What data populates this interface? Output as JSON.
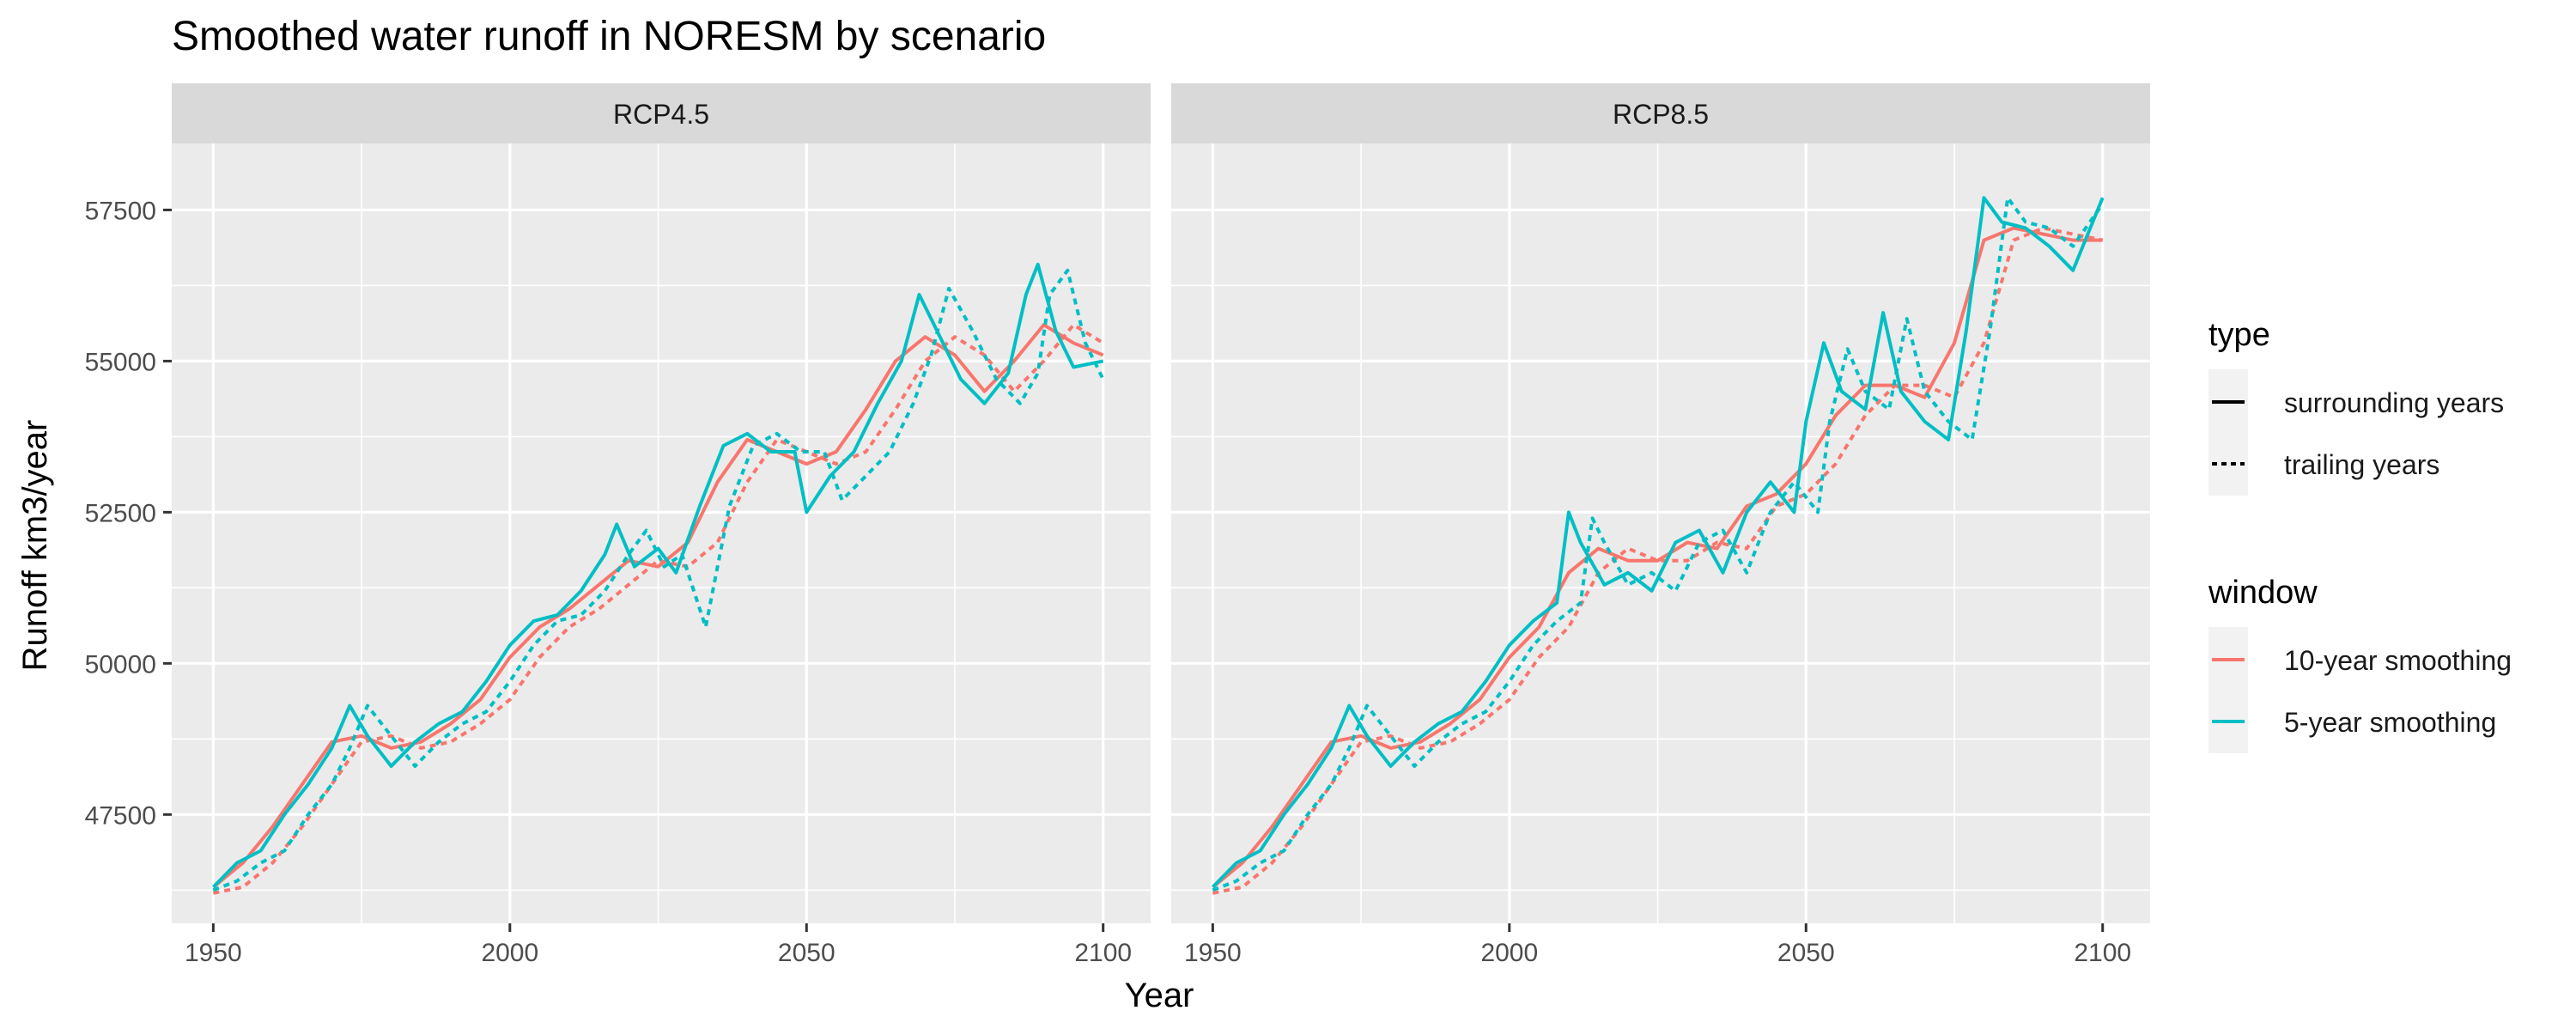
{
  "title": "Smoothed water runoff in NORESM by scenario",
  "xlabel": "Year",
  "ylabel": "Runoff km3/year",
  "legend": {
    "type_title": "type",
    "type_items": [
      "surrounding years",
      "trailing years"
    ],
    "window_title": "window",
    "window_items": [
      "10-year smoothing",
      "5-year smoothing"
    ]
  },
  "colors": {
    "10-year smoothing": "#F8766D",
    "5-year smoothing": "#00BFC4",
    "panel_bg": "#EBEBEB",
    "strip_bg": "#D9D9D9"
  },
  "chart_data": [
    {
      "type": "line",
      "panel": "RCP4.5",
      "xlim": [
        1943,
        2108
      ],
      "ylim": [
        45700,
        58600
      ],
      "x_ticks": [
        1950,
        2000,
        2050,
        2100
      ],
      "y_ticks": [
        47500,
        50000,
        52500,
        55000,
        57500
      ],
      "series": [
        {
          "window": "10-year smoothing",
          "type": "surrounding years",
          "x": [
            1950,
            1955,
            1960,
            1965,
            1970,
            1975,
            1980,
            1985,
            1990,
            1995,
            2000,
            2005,
            2010,
            2015,
            2020,
            2025,
            2030,
            2035,
            2040,
            2045,
            2050,
            2055,
            2060,
            2065,
            2070,
            2075,
            2080,
            2085,
            2090,
            2095,
            2100
          ],
          "y": [
            46300,
            46700,
            47300,
            48000,
            48700,
            48800,
            48600,
            48700,
            49000,
            49400,
            50100,
            50600,
            50900,
            51300,
            51700,
            51600,
            52000,
            53000,
            53700,
            53500,
            53300,
            53500,
            54200,
            55000,
            55400,
            55100,
            54500,
            55000,
            55600,
            55300,
            55100
          ]
        },
        {
          "window": "10-year smoothing",
          "type": "trailing years",
          "x": [
            1950,
            1955,
            1960,
            1965,
            1970,
            1975,
            1980,
            1985,
            1990,
            1995,
            2000,
            2005,
            2010,
            2015,
            2020,
            2025,
            2030,
            2035,
            2040,
            2045,
            2050,
            2055,
            2060,
            2065,
            2070,
            2075,
            2080,
            2085,
            2090,
            2095,
            2100
          ],
          "y": [
            46200,
            46300,
            46700,
            47300,
            48000,
            48700,
            48800,
            48600,
            48700,
            49000,
            49400,
            50100,
            50600,
            50900,
            51300,
            51700,
            51600,
            52000,
            53000,
            53700,
            53500,
            53300,
            53500,
            54200,
            55000,
            55400,
            55100,
            54500,
            55000,
            55600,
            55300
          ]
        },
        {
          "window": "5-year smoothing",
          "type": "surrounding years",
          "x": [
            1950,
            1954,
            1958,
            1962,
            1966,
            1970,
            1973,
            1976,
            1980,
            1984,
            1988,
            1992,
            1996,
            2000,
            2004,
            2008,
            2012,
            2016,
            2018,
            2021,
            2025,
            2028,
            2032,
            2036,
            2040,
            2044,
            2048,
            2050,
            2054,
            2058,
            2062,
            2066,
            2069,
            2072,
            2076,
            2080,
            2084,
            2087,
            2089,
            2092,
            2095,
            2100
          ],
          "y": [
            46300,
            46700,
            46900,
            47500,
            48000,
            48600,
            49300,
            48800,
            48300,
            48700,
            49000,
            49200,
            49700,
            50300,
            50700,
            50800,
            51200,
            51800,
            52300,
            51600,
            51900,
            51500,
            52600,
            53600,
            53800,
            53500,
            53500,
            52500,
            53100,
            53500,
            54300,
            55000,
            56100,
            55500,
            54700,
            54300,
            54800,
            56100,
            56600,
            55500,
            54900,
            55000
          ]
        },
        {
          "window": "5-year smoothing",
          "type": "trailing years",
          "x": [
            1950,
            1954,
            1958,
            1962,
            1966,
            1970,
            1973,
            1976,
            1980,
            1984,
            1988,
            1992,
            1996,
            2000,
            2004,
            2008,
            2012,
            2016,
            2020,
            2023,
            2026,
            2029,
            2033,
            2037,
            2041,
            2045,
            2049,
            2053,
            2056,
            2060,
            2064,
            2068,
            2071,
            2074,
            2078,
            2082,
            2086,
            2089,
            2091,
            2094,
            2097,
            2100
          ],
          "y": [
            46250,
            46400,
            46700,
            46900,
            47500,
            48000,
            48600,
            49300,
            48800,
            48300,
            48700,
            49000,
            49200,
            49700,
            50300,
            50700,
            50800,
            51200,
            51800,
            52200,
            51600,
            51800,
            50600,
            52600,
            53600,
            53800,
            53500,
            53500,
            52700,
            53100,
            53500,
            54300,
            55100,
            56200,
            55500,
            54700,
            54300,
            54800,
            56100,
            56500,
            55300,
            54700
          ]
        }
      ]
    },
    {
      "type": "line",
      "panel": "RCP8.5",
      "xlim": [
        1943,
        2108
      ],
      "ylim": [
        45700,
        58600
      ],
      "x_ticks": [
        1950,
        2000,
        2050,
        2100
      ],
      "y_ticks": [
        47500,
        50000,
        52500,
        55000,
        57500
      ],
      "series": [
        {
          "window": "10-year smoothing",
          "type": "surrounding years",
          "x": [
            1950,
            1955,
            1960,
            1965,
            1970,
            1975,
            1980,
            1985,
            1990,
            1995,
            2000,
            2005,
            2010,
            2015,
            2020,
            2025,
            2030,
            2035,
            2040,
            2045,
            2050,
            2055,
            2060,
            2065,
            2070,
            2075,
            2080,
            2085,
            2090,
            2095,
            2100
          ],
          "y": [
            46300,
            46700,
            47300,
            48000,
            48700,
            48800,
            48600,
            48700,
            49000,
            49400,
            50100,
            50600,
            51500,
            51900,
            51700,
            51700,
            52000,
            51900,
            52600,
            52800,
            53300,
            54100,
            54600,
            54600,
            54400,
            55300,
            57000,
            57200,
            57100,
            57000,
            57000
          ]
        },
        {
          "window": "10-year smoothing",
          "type": "trailing years",
          "x": [
            1950,
            1955,
            1960,
            1965,
            1970,
            1975,
            1980,
            1985,
            1990,
            1995,
            2000,
            2005,
            2010,
            2015,
            2020,
            2025,
            2030,
            2035,
            2040,
            2045,
            2050,
            2055,
            2060,
            2065,
            2070,
            2075,
            2080,
            2085,
            2090,
            2095,
            2100
          ],
          "y": [
            46200,
            46300,
            46700,
            47300,
            48000,
            48700,
            48800,
            48600,
            48700,
            49000,
            49400,
            50100,
            50600,
            51500,
            51900,
            51700,
            51700,
            52000,
            51900,
            52600,
            52800,
            53300,
            54100,
            54600,
            54600,
            54400,
            55300,
            57000,
            57200,
            57100,
            57000
          ]
        },
        {
          "window": "5-year smoothing",
          "type": "surrounding years",
          "x": [
            1950,
            1954,
            1958,
            1962,
            1966,
            1970,
            1973,
            1976,
            1980,
            1984,
            1988,
            1992,
            1996,
            2000,
            2004,
            2008,
            2010,
            2012,
            2016,
            2020,
            2024,
            2028,
            2032,
            2036,
            2040,
            2044,
            2048,
            2050,
            2053,
            2056,
            2060,
            2063,
            2066,
            2070,
            2074,
            2077,
            2080,
            2083,
            2087,
            2091,
            2095,
            2100
          ],
          "y": [
            46300,
            46700,
            46900,
            47500,
            48000,
            48600,
            49300,
            48800,
            48300,
            48700,
            49000,
            49200,
            49700,
            50300,
            50700,
            51000,
            52500,
            52000,
            51300,
            51500,
            51200,
            52000,
            52200,
            51500,
            52500,
            53000,
            52500,
            54000,
            55300,
            54500,
            54200,
            55800,
            54500,
            54000,
            53700,
            55500,
            57700,
            57300,
            57200,
            56900,
            56500,
            57700
          ]
        },
        {
          "window": "5-year smoothing",
          "type": "trailing years",
          "x": [
            1950,
            1954,
            1958,
            1962,
            1966,
            1970,
            1973,
            1976,
            1980,
            1984,
            1988,
            1992,
            1996,
            2000,
            2004,
            2008,
            2012,
            2014,
            2016,
            2020,
            2024,
            2028,
            2032,
            2036,
            2040,
            2044,
            2048,
            2052,
            2054,
            2057,
            2060,
            2064,
            2067,
            2070,
            2074,
            2078,
            2081,
            2084,
            2087,
            2091,
            2095,
            2100
          ],
          "y": [
            46250,
            46400,
            46700,
            46900,
            47500,
            48000,
            48600,
            49300,
            48800,
            48300,
            48700,
            49000,
            49200,
            49700,
            50300,
            50700,
            51000,
            52400,
            52000,
            51300,
            51500,
            51200,
            52000,
            52200,
            51500,
            52500,
            53000,
            52500,
            54000,
            55200,
            54500,
            54200,
            55700,
            54500,
            54000,
            53700,
            55500,
            57700,
            57300,
            57200,
            56900,
            57600
          ]
        }
      ]
    }
  ]
}
